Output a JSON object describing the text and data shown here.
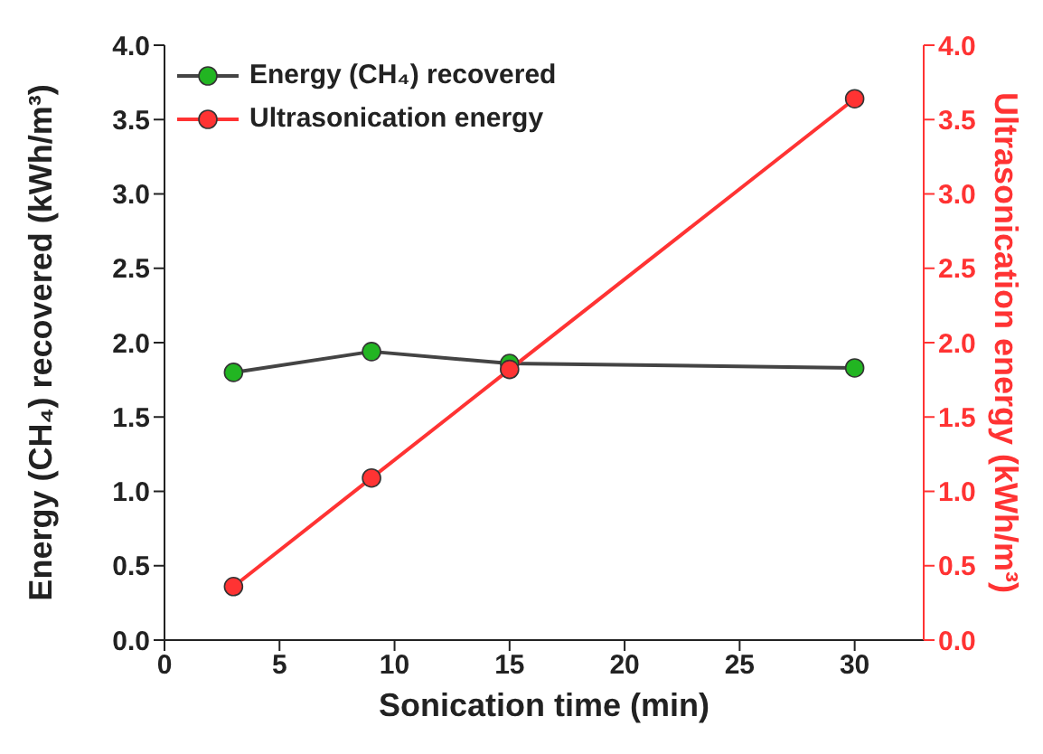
{
  "chart_data": {
    "type": "line",
    "xlabel": "Sonication time (min)",
    "ylabel": "Energy (CH₄) recovered (kWh/m³)",
    "y2label": "Ultrasonication energy (kWh/m³)",
    "x": [
      3,
      9,
      15,
      30
    ],
    "series": [
      {
        "name": "Energy (CH₄) recovered",
        "color": "#22b522",
        "values": [
          1.8,
          1.94,
          1.86,
          1.83
        ]
      },
      {
        "name": "Ultrasonication energy",
        "color": "#ff3333",
        "values": [
          0.36,
          1.09,
          1.82,
          3.64
        ],
        "axis": "y2"
      }
    ],
    "xlim": [
      0,
      33
    ],
    "xticks": [
      0,
      5,
      10,
      15,
      20,
      25,
      30
    ],
    "ylim": [
      0,
      4
    ],
    "yticks": [
      {
        "value": 0,
        "label": "0.0"
      },
      {
        "value": 0.5,
        "label": "0.5"
      },
      {
        "value": 1,
        "label": "1.0"
      },
      {
        "value": 1.5,
        "label": "1.5"
      },
      {
        "value": 2,
        "label": "2.0"
      },
      {
        "value": 2.5,
        "label": "2.5"
      },
      {
        "value": 3,
        "label": "3.0"
      },
      {
        "value": 3.5,
        "label": "3.5"
      },
      {
        "value": 4,
        "label": "4.0"
      }
    ],
    "y2lim": [
      0,
      4
    ],
    "y2ticks": [
      {
        "value": 0,
        "label": "0.0"
      },
      {
        "value": 0.5,
        "label": "0.5"
      },
      {
        "value": 1,
        "label": "1.0"
      },
      {
        "value": 1.5,
        "label": "1.5"
      },
      {
        "value": 2,
        "label": "2.0"
      },
      {
        "value": 2.5,
        "label": "2.5"
      },
      {
        "value": 3,
        "label": "3.0"
      },
      {
        "value": 3.5,
        "label": "3.5"
      },
      {
        "value": 4,
        "label": "4.0"
      }
    ],
    "legend": "top left",
    "marker": "circle",
    "grid": false
  }
}
